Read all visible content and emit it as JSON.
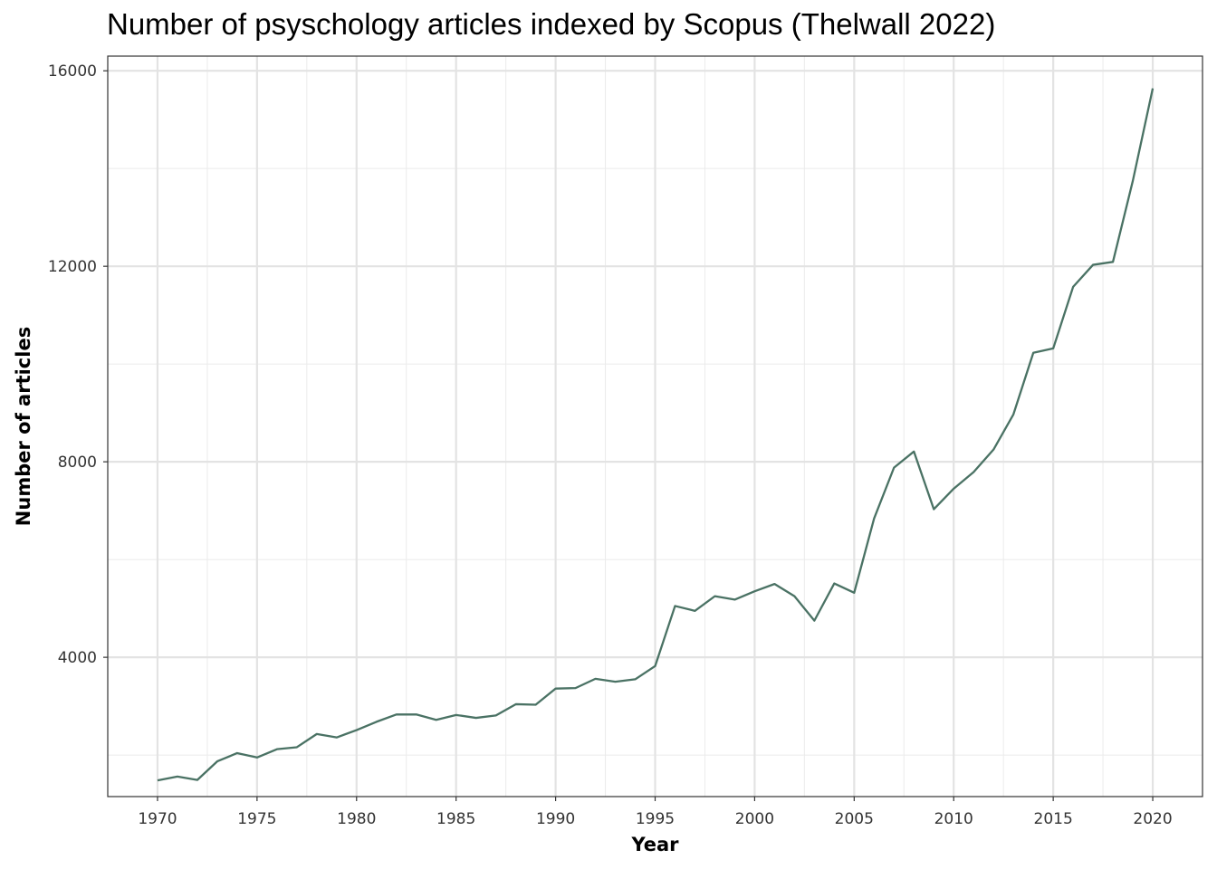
{
  "chart_data": {
    "type": "line",
    "title": "Number of psyschology articles indexed by Scopus (Thelwall 2022)",
    "xlabel": "Year",
    "ylabel": "Number of articles",
    "xlim": [
      1967.5,
      2022.5
    ],
    "ylim": [
      1150,
      16300
    ],
    "x_ticks": [
      1970,
      1975,
      1980,
      1985,
      1990,
      1995,
      2000,
      2005,
      2010,
      2015,
      2020
    ],
    "y_ticks": [
      4000,
      8000,
      12000,
      16000
    ],
    "grid": true,
    "legend": "none",
    "series": [
      {
        "color": "#4a7264",
        "x": [
          1970,
          1971,
          1972,
          1973,
          1974,
          1975,
          1976,
          1977,
          1978,
          1979,
          1980,
          1981,
          1982,
          1983,
          1984,
          1985,
          1986,
          1987,
          1988,
          1989,
          1990,
          1991,
          1992,
          1993,
          1994,
          1995,
          1996,
          1997,
          1998,
          1999,
          2000,
          2001,
          2002,
          2003,
          2004,
          2005,
          2006,
          2007,
          2008,
          2009,
          2010,
          2011,
          2012,
          2013,
          2014,
          2015,
          2016,
          2017,
          2018,
          2019,
          2020
        ],
        "values": [
          1480,
          1560,
          1490,
          1870,
          2040,
          1950,
          2120,
          2160,
          2430,
          2360,
          2510,
          2680,
          2830,
          2830,
          2720,
          2820,
          2760,
          2810,
          3040,
          3030,
          3360,
          3370,
          3560,
          3500,
          3550,
          3820,
          5050,
          4950,
          5250,
          5180,
          5350,
          5500,
          5250,
          4750,
          5510,
          5320,
          6840,
          7880,
          8210,
          7030,
          7450,
          7790,
          8250,
          8970,
          10230,
          10320,
          11580,
          12030,
          12090,
          13750,
          15640
        ]
      }
    ]
  }
}
